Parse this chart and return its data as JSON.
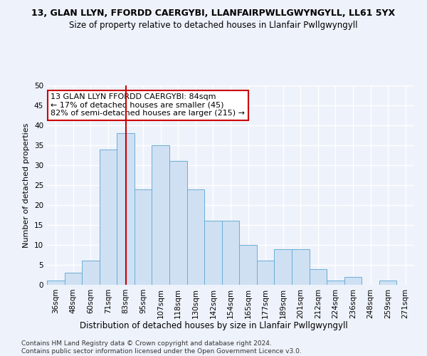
{
  "title": "13, GLAN LLYN, FFORDD CAERGYBI, LLANFAIRPWLLGWYNGYLL, LL61 5YX",
  "subtitle": "Size of property relative to detached houses in Llanfair Pwllgwyngyll",
  "xlabel": "Distribution of detached houses by size in Llanfair Pwllgwyngyll",
  "ylabel": "Number of detached properties",
  "bar_labels": [
    "36sqm",
    "48sqm",
    "60sqm",
    "71sqm",
    "83sqm",
    "95sqm",
    "107sqm",
    "118sqm",
    "130sqm",
    "142sqm",
    "154sqm",
    "165sqm",
    "177sqm",
    "189sqm",
    "201sqm",
    "212sqm",
    "224sqm",
    "236sqm",
    "248sqm",
    "259sqm",
    "271sqm"
  ],
  "bar_values": [
    1,
    3,
    6,
    34,
    38,
    24,
    35,
    31,
    24,
    16,
    16,
    10,
    6,
    9,
    9,
    4,
    1,
    2,
    0,
    1,
    0
  ],
  "bar_color": "#cfe0f3",
  "bar_edge_color": "#6aaed6",
  "vline_x_label": "83sqm",
  "vline_color": "#cc0000",
  "annotation_text": "13 GLAN LLYN FFORDD CAERGYBI: 84sqm\n← 17% of detached houses are smaller (45)\n82% of semi-detached houses are larger (215) →",
  "annotation_box_color": "white",
  "annotation_box_edge": "#cc0000",
  "ylim": [
    0,
    50
  ],
  "yticks": [
    0,
    5,
    10,
    15,
    20,
    25,
    30,
    35,
    40,
    45,
    50
  ],
  "footer": "Contains HM Land Registry data © Crown copyright and database right 2024.\nContains public sector information licensed under the Open Government Licence v3.0.",
  "bg_color": "#eef2fb",
  "grid_color": "#ffffff",
  "title_fontsize": 9,
  "subtitle_fontsize": 8.5,
  "xlabel_fontsize": 8.5,
  "ylabel_fontsize": 8,
  "tick_fontsize": 7.5,
  "annotation_fontsize": 8,
  "footer_fontsize": 6.5
}
